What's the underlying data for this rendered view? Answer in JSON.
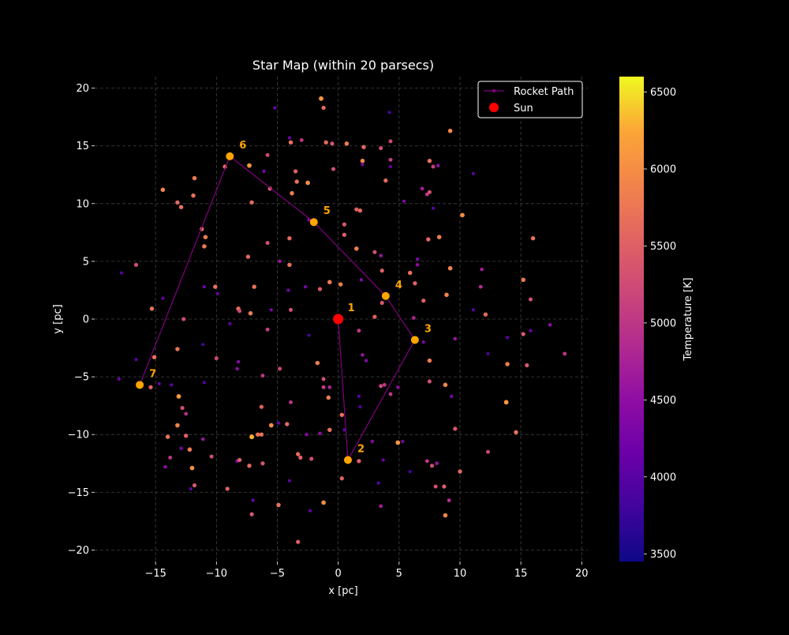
{
  "colors": {
    "background": "#000000",
    "grid": "#404040",
    "axis_text": "#ffffff",
    "path": "#800080",
    "sun": "#ff0000",
    "waypoint": "#ffa500",
    "legend_edge": "#ffffff"
  },
  "colorbar": {
    "label": "Temperature [K]",
    "min": 3450,
    "max": 6600,
    "ticks": [
      "3500",
      "4000",
      "4500",
      "5000",
      "5500",
      "6000",
      "6500"
    ],
    "colormap": "plasma"
  },
  "chart_data": {
    "type": "scatter",
    "title": "Star Map (within 20 parsecs)",
    "xlabel": "x [pc]",
    "ylabel": "y [pc]",
    "xlim": [
      -20,
      20.5
    ],
    "ylim": [
      -21,
      21
    ],
    "xticks": [
      "−15",
      "−10",
      "−5",
      "0",
      "5",
      "10",
      "15",
      "20"
    ],
    "yticks": [
      "−20",
      "−15",
      "−10",
      "−5",
      "0",
      "5",
      "10",
      "15",
      "20"
    ],
    "grid": true,
    "grid_style": "dashed",
    "legend": {
      "position": "upper right",
      "entries": [
        "Rocket Path",
        "Sun"
      ]
    },
    "sun": {
      "name": "Sun",
      "x": 0,
      "y": 0
    },
    "rocket_path": {
      "name": "Rocket Path",
      "waypoints": [
        {
          "label": "1",
          "x": 0.0,
          "y": 0.0
        },
        {
          "label": "2",
          "x": 0.8,
          "y": -12.2
        },
        {
          "label": "3",
          "x": 6.3,
          "y": -1.8
        },
        {
          "label": "4",
          "x": 3.9,
          "y": 2.0
        },
        {
          "label": "5",
          "x": -2.0,
          "y": 8.4
        },
        {
          "label": "6",
          "x": -8.9,
          "y": 14.1
        },
        {
          "label": "7",
          "x": -16.3,
          "y": -5.7
        }
      ]
    },
    "stars": [
      [
        -1.4,
        19.1,
        6100
      ],
      [
        -1.2,
        18.3,
        5600
      ],
      [
        -5.2,
        18.3,
        4200
      ],
      [
        4.2,
        17.9,
        3900
      ],
      [
        9.2,
        16.3,
        5900
      ],
      [
        3.5,
        14.8,
        5300
      ],
      [
        0.7,
        15.2,
        5800
      ],
      [
        -0.5,
        15.2,
        5400
      ],
      [
        -1.0,
        15.3,
        5600
      ],
      [
        -3.9,
        15.3,
        5700
      ],
      [
        -3.0,
        15.5,
        5000
      ],
      [
        -4.0,
        15.7,
        4200
      ],
      [
        4.3,
        15.4,
        5200
      ],
      [
        2.1,
        14.9,
        5600
      ],
      [
        4.3,
        13.8,
        5100
      ],
      [
        2.0,
        13.7,
        5900
      ],
      [
        2.0,
        13.4,
        4300
      ],
      [
        4.3,
        13.2,
        4100
      ],
      [
        7.5,
        13.7,
        5700
      ],
      [
        7.8,
        13.2,
        5100
      ],
      [
        8.2,
        13.3,
        4500
      ],
      [
        11.1,
        12.6,
        4100
      ],
      [
        -7.3,
        13.3,
        6100
      ],
      [
        -9.3,
        13.2,
        5700
      ],
      [
        -5.8,
        14.2,
        5200
      ],
      [
        -6.1,
        12.8,
        4300
      ],
      [
        -3.5,
        12.8,
        5500
      ],
      [
        -3.4,
        11.9,
        5700
      ],
      [
        -2.5,
        11.8,
        6000
      ],
      [
        3.9,
        12.0,
        5600
      ],
      [
        -11.8,
        12.2,
        5800
      ],
      [
        -14.4,
        11.2,
        5900
      ],
      [
        -5.6,
        11.3,
        5500
      ],
      [
        -3.8,
        10.9,
        5800
      ],
      [
        7.3,
        10.8,
        5000
      ],
      [
        7.5,
        11.0,
        5300
      ],
      [
        6.9,
        11.3,
        4700
      ],
      [
        -13.2,
        10.1,
        5600
      ],
      [
        -11.9,
        10.7,
        5700
      ],
      [
        -7.1,
        10.1,
        5600
      ],
      [
        1.5,
        9.5,
        5500
      ],
      [
        1.8,
        9.4,
        5600
      ],
      [
        5.4,
        10.2,
        4300
      ],
      [
        7.8,
        9.6,
        4000
      ],
      [
        10.2,
        9.0,
        6000
      ],
      [
        -12.9,
        9.7,
        5700
      ],
      [
        -11.2,
        7.8,
        5600
      ],
      [
        -2.4,
        8.6,
        4400
      ],
      [
        0.5,
        8.2,
        5400
      ],
      [
        0.5,
        7.3,
        5500
      ],
      [
        -10.9,
        7.1,
        5800
      ],
      [
        -11.0,
        6.3,
        5800
      ],
      [
        -4.0,
        7.0,
        5600
      ],
      [
        -5.8,
        6.6,
        5300
      ],
      [
        1.5,
        6.1,
        5800
      ],
      [
        3.0,
        5.8,
        5300
      ],
      [
        3.5,
        5.5,
        4600
      ],
      [
        6.5,
        5.2,
        4300
      ],
      [
        6.5,
        4.7,
        4500
      ],
      [
        7.4,
        6.9,
        5600
      ],
      [
        8.3,
        7.1,
        5800
      ],
      [
        16.0,
        7.0,
        5700
      ],
      [
        -16.6,
        4.7,
        5300
      ],
      [
        -7.4,
        5.4,
        5600
      ],
      [
        -4.8,
        5.0,
        4600
      ],
      [
        -4.0,
        4.7,
        5700
      ],
      [
        -17.8,
        4.0,
        4000
      ],
      [
        -11.0,
        2.8,
        4200
      ],
      [
        -10.1,
        2.8,
        5700
      ],
      [
        -9.9,
        2.2,
        4100
      ],
      [
        -6.9,
        2.8,
        5700
      ],
      [
        -4.1,
        2.5,
        4300
      ],
      [
        -2.7,
        2.8,
        4300
      ],
      [
        -1.5,
        2.6,
        5400
      ],
      [
        -0.7,
        3.2,
        5800
      ],
      [
        0.2,
        3.0,
        5800
      ],
      [
        1.9,
        3.4,
        4400
      ],
      [
        3.6,
        4.2,
        5500
      ],
      [
        5.9,
        4.0,
        5700
      ],
      [
        6.3,
        3.1,
        5500
      ],
      [
        9.2,
        4.4,
        5900
      ],
      [
        8.9,
        2.1,
        5900
      ],
      [
        11.7,
        2.8,
        4900
      ],
      [
        11.8,
        4.3,
        4700
      ],
      [
        15.2,
        3.4,
        5800
      ],
      [
        15.8,
        1.7,
        5300
      ],
      [
        7.0,
        1.6,
        5500
      ],
      [
        3.6,
        1.4,
        5400
      ],
      [
        11.1,
        0.8,
        4000
      ],
      [
        12.1,
        0.4,
        5600
      ],
      [
        -15.3,
        0.9,
        5700
      ],
      [
        -14.4,
        1.8,
        4100
      ],
      [
        -8.2,
        0.9,
        5700
      ],
      [
        -8.1,
        0.7,
        5200
      ],
      [
        -7.2,
        0.5,
        5800
      ],
      [
        -5.5,
        0.8,
        4300
      ],
      [
        -3.9,
        0.8,
        5300
      ],
      [
        3.0,
        0.2,
        5500
      ],
      [
        6.2,
        0.1,
        4800
      ],
      [
        -12.7,
        0.0,
        5300
      ],
      [
        -8.9,
        -0.4,
        4100
      ],
      [
        -5.8,
        -0.9,
        5100
      ],
      [
        1.7,
        -1.0,
        5000
      ],
      [
        7.0,
        -2.0,
        4300
      ],
      [
        9.6,
        -1.7,
        4600
      ],
      [
        13.9,
        -1.6,
        4100
      ],
      [
        15.2,
        -1.3,
        5400
      ],
      [
        15.8,
        -1.0,
        4200
      ],
      [
        17.4,
        -0.5,
        4500
      ],
      [
        18.6,
        -3.0,
        5000
      ],
      [
        -13.2,
        -2.6,
        5700
      ],
      [
        -15.1,
        -3.3,
        5700
      ],
      [
        -16.6,
        -3.5,
        4000
      ],
      [
        -10.0,
        -3.4,
        5200
      ],
      [
        -8.2,
        -3.7,
        4400
      ],
      [
        -2.4,
        -1.4,
        3900
      ],
      [
        -1.7,
        -3.8,
        5800
      ],
      [
        2.0,
        -3.1,
        4600
      ],
      [
        2.3,
        -3.6,
        4400
      ],
      [
        7.5,
        -3.6,
        5800
      ],
      [
        12.3,
        -3.0,
        3900
      ],
      [
        15.5,
        -4.0,
        5400
      ],
      [
        13.9,
        -3.9,
        5800
      ],
      [
        -18.0,
        -5.2,
        4200
      ],
      [
        -15.4,
        -5.9,
        5500
      ],
      [
        -14.7,
        -5.6,
        4100
      ],
      [
        -11.0,
        -5.5,
        4000
      ],
      [
        -8.3,
        -4.3,
        4500
      ],
      [
        -6.2,
        -4.9,
        5000
      ],
      [
        -4.8,
        -4.3,
        5200
      ],
      [
        -1.2,
        -5.2,
        5300
      ],
      [
        -1.2,
        -5.9,
        5100
      ],
      [
        -0.7,
        -5.9,
        4800
      ],
      [
        3.5,
        -5.8,
        5200
      ],
      [
        3.8,
        -5.7,
        5000
      ],
      [
        4.3,
        -6.5,
        5000
      ],
      [
        4.9,
        -5.9,
        4500
      ],
      [
        7.5,
        -5.4,
        5300
      ],
      [
        8.8,
        -5.7,
        5900
      ],
      [
        9.3,
        -6.7,
        4300
      ],
      [
        -13.1,
        -6.7,
        6100
      ],
      [
        -12.8,
        -7.7,
        5300
      ],
      [
        -12.5,
        -8.2,
        4900
      ],
      [
        -6.3,
        -7.6,
        5500
      ],
      [
        -3.9,
        -7.2,
        5000
      ],
      [
        -0.8,
        -6.8,
        5800
      ],
      [
        1.7,
        -6.7,
        4000
      ],
      [
        1.8,
        -7.6,
        4000
      ],
      [
        13.8,
        -7.2,
        6100
      ],
      [
        -13.2,
        -9.2,
        5900
      ],
      [
        -14.0,
        -10.2,
        5700
      ],
      [
        -12.5,
        -10.1,
        5500
      ],
      [
        -11.1,
        -10.4,
        4600
      ],
      [
        -7.1,
        -10.2,
        6300
      ],
      [
        -6.6,
        -10.0,
        5700
      ],
      [
        -6.3,
        -10.0,
        5700
      ],
      [
        -5.5,
        -9.2,
        6000
      ],
      [
        -4.9,
        -9.0,
        4200
      ],
      [
        -4.2,
        -9.1,
        5600
      ],
      [
        -2.6,
        -10.0,
        4400
      ],
      [
        -1.5,
        -9.9,
        4500
      ],
      [
        -0.7,
        -9.6,
        5700
      ],
      [
        0.3,
        -8.3,
        5700
      ],
      [
        0.5,
        -9.6,
        4000
      ],
      [
        2.8,
        -10.6,
        4400
      ],
      [
        4.9,
        -10.7,
        6100
      ],
      [
        5.3,
        -10.6,
        4300
      ],
      [
        9.6,
        -9.5,
        5400
      ],
      [
        14.6,
        -9.8,
        5700
      ],
      [
        -13.8,
        -12.0,
        5000
      ],
      [
        -12.2,
        -11.3,
        5800
      ],
      [
        -12.9,
        -11.2,
        4300
      ],
      [
        -10.4,
        -11.9,
        5300
      ],
      [
        -8.3,
        -12.3,
        4500
      ],
      [
        -8.1,
        -12.2,
        5500
      ],
      [
        -7.3,
        -12.7,
        5600
      ],
      [
        -6.2,
        -12.5,
        5400
      ],
      [
        -3.3,
        -11.7,
        5600
      ],
      [
        -3.1,
        -12.0,
        5500
      ],
      [
        -2.2,
        -12.1,
        5300
      ],
      [
        1.7,
        -12.3,
        5500
      ],
      [
        3.7,
        -12.2,
        4200
      ],
      [
        5.9,
        -13.2,
        3900
      ],
      [
        7.3,
        -12.3,
        5000
      ],
      [
        7.7,
        -12.7,
        5300
      ],
      [
        8.1,
        -12.5,
        4600
      ],
      [
        10.0,
        -13.2,
        5600
      ],
      [
        12.3,
        -11.5,
        5200
      ],
      [
        -14.2,
        -12.8,
        4500
      ],
      [
        -12.0,
        -12.9,
        6000
      ],
      [
        -11.8,
        -14.4,
        5400
      ],
      [
        -12.1,
        -14.7,
        4100
      ],
      [
        -9.1,
        -14.7,
        5500
      ],
      [
        -4.0,
        -14.0,
        4100
      ],
      [
        0.3,
        -13.8,
        5500
      ],
      [
        3.3,
        -14.2,
        4000
      ],
      [
        8.0,
        -14.5,
        5300
      ],
      [
        8.7,
        -14.5,
        5500
      ],
      [
        9.1,
        -15.7,
        4900
      ],
      [
        -7.0,
        -15.7,
        4200
      ],
      [
        -4.9,
        -16.1,
        5700
      ],
      [
        -2.3,
        -16.6,
        4100
      ],
      [
        -1.2,
        -15.9,
        6000
      ],
      [
        3.5,
        -16.2,
        4700
      ],
      [
        -7.1,
        -16.9,
        5400
      ],
      [
        8.8,
        -17.0,
        5900
      ],
      [
        -3.3,
        -19.3,
        5500
      ],
      [
        -13.7,
        -5.7,
        4100
      ],
      [
        -11.1,
        -2.2,
        3900
      ],
      [
        -0.4,
        13.0,
        5300
      ]
    ]
  }
}
